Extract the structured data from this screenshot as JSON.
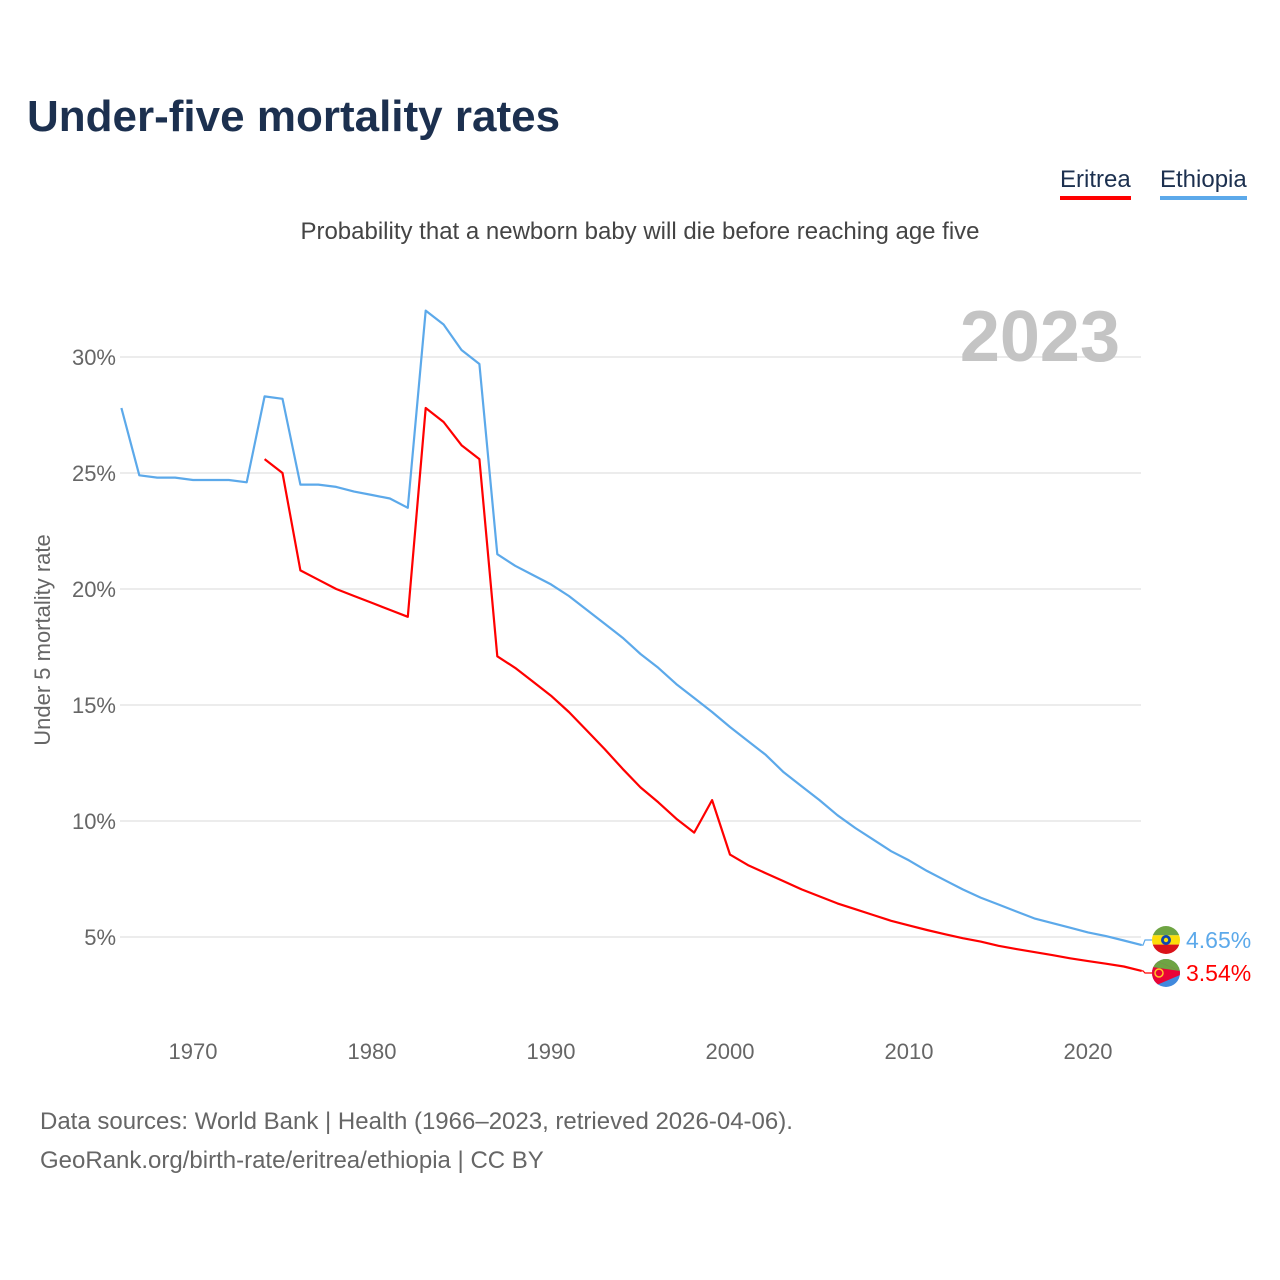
{
  "title": "Under-five mortality rates",
  "subtitle": "Probability that a newborn baby will die before reaching age five",
  "legend": [
    {
      "label": "Eritrea",
      "color": "#ff0000"
    },
    {
      "label": "Ethiopia",
      "color": "#5ca9ea"
    }
  ],
  "year_label": "2023",
  "sources": [
    "Data sources: World Bank | Health (1966–2023, retrieved 2026-04-06).",
    "GeoRank.org/birth-rate/eritrea/ethiopia | CC BY"
  ],
  "chart_data": {
    "type": "line",
    "title": "Under-five mortality rates",
    "xlabel": "",
    "ylabel": "Under 5 mortality rate",
    "xlim": [
      1966,
      2023
    ],
    "ylim": [
      0,
      32.5
    ],
    "yticks": [
      5,
      10,
      15,
      20,
      25,
      30
    ],
    "ytick_labels": [
      "5%",
      "10%",
      "15%",
      "20%",
      "25%",
      "30%"
    ],
    "xticks": [
      1970,
      1980,
      1990,
      2000,
      2010,
      2020
    ],
    "xtick_labels": [
      "1970",
      "1980",
      "1990",
      "2000",
      "2010",
      "2020"
    ],
    "grid": true,
    "legend_position": "top-right",
    "series": [
      {
        "name": "Ethiopia",
        "color": "#5ca9ea",
        "end_label": "4.65%",
        "flag": "ethiopia-flag",
        "start_year": 1966,
        "values": [
          27.8,
          24.9,
          24.8,
          24.8,
          24.7,
          24.7,
          24.7,
          24.6,
          28.3,
          28.2,
          24.5,
          24.5,
          24.4,
          24.2,
          24.05,
          23.9,
          23.5,
          32.0,
          31.4,
          30.3,
          29.7,
          21.5,
          21.0,
          20.6,
          20.2,
          19.7,
          19.1,
          18.5,
          17.9,
          17.2,
          16.6,
          15.9,
          15.3,
          14.7,
          14.05,
          13.45,
          12.85,
          12.1,
          11.5,
          10.9,
          10.25,
          9.7,
          9.2,
          8.7,
          8.3,
          7.85,
          7.45,
          7.05,
          6.7,
          6.4,
          6.1,
          5.8,
          5.6,
          5.4,
          5.2,
          5.04,
          4.85,
          4.65
        ]
      },
      {
        "name": "Eritrea",
        "color": "#ff0000",
        "end_label": "3.54%",
        "flag": "eritrea-flag",
        "start_year": 1974,
        "values": [
          25.6,
          25.0,
          20.8,
          20.4,
          20.0,
          19.7,
          19.4,
          19.1,
          18.8,
          27.8,
          27.2,
          26.2,
          25.6,
          17.1,
          16.6,
          16.0,
          15.4,
          14.7,
          13.9,
          13.1,
          12.25,
          11.45,
          10.8,
          10.1,
          9.5,
          10.9,
          8.55,
          8.1,
          7.75,
          7.4,
          7.05,
          6.75,
          6.45,
          6.2,
          5.95,
          5.7,
          5.5,
          5.3,
          5.12,
          4.95,
          4.8,
          4.62,
          4.48,
          4.35,
          4.22,
          4.08,
          3.96,
          3.85,
          3.73,
          3.54
        ]
      }
    ]
  }
}
